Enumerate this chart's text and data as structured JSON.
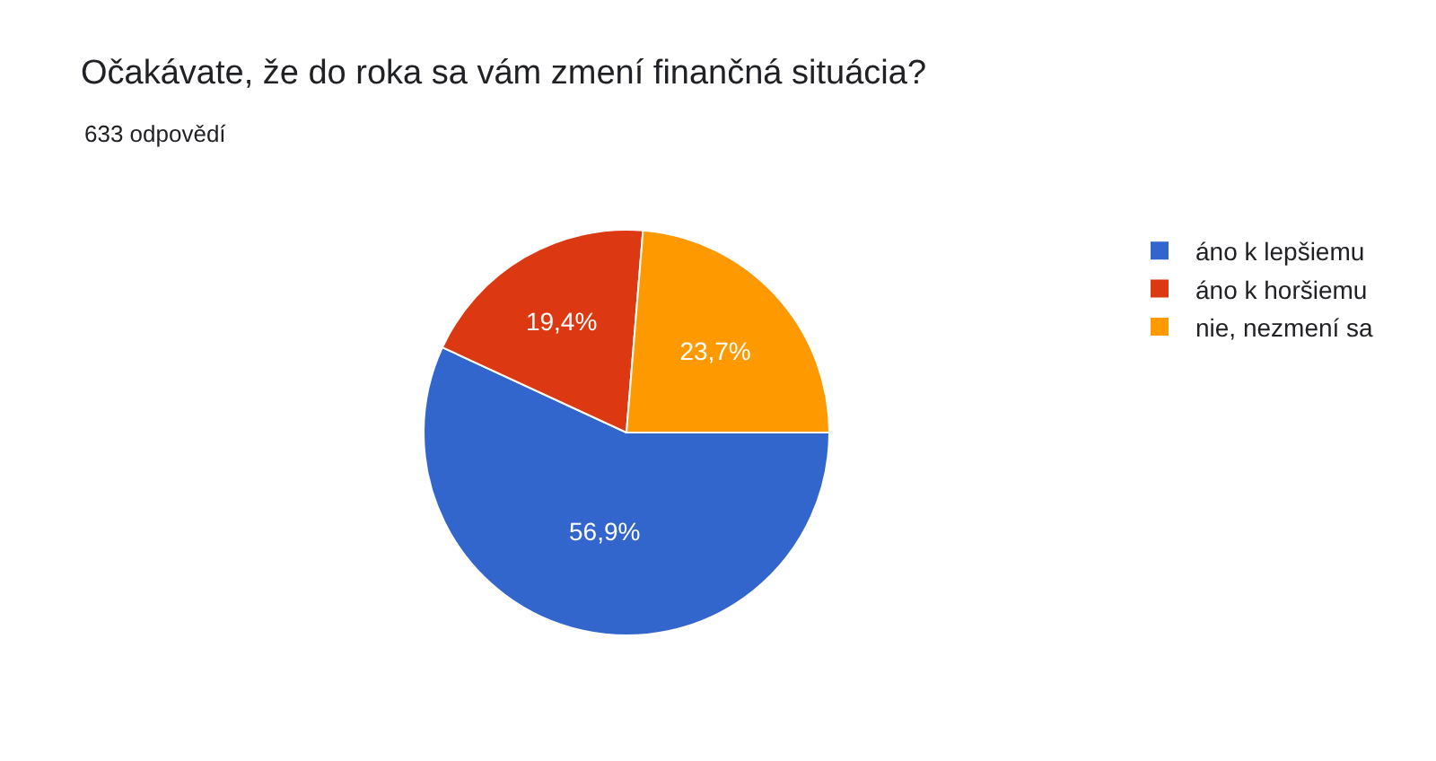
{
  "chart_data": {
    "type": "pie",
    "title": "Očakávate, že do roka sa vám zmení finančná situácia?",
    "subtitle": "633 odpovědí",
    "categories": [
      "áno k lepšiemu",
      "áno k horšiemu",
      "nie, nezmení sa"
    ],
    "values": [
      56.9,
      19.4,
      23.7
    ],
    "colors": [
      "#3366cc",
      "#dc3912",
      "#ff9900"
    ],
    "value_labels": [
      "56,9%",
      "19,4%",
      "23,7%"
    ],
    "legend": "top right"
  }
}
